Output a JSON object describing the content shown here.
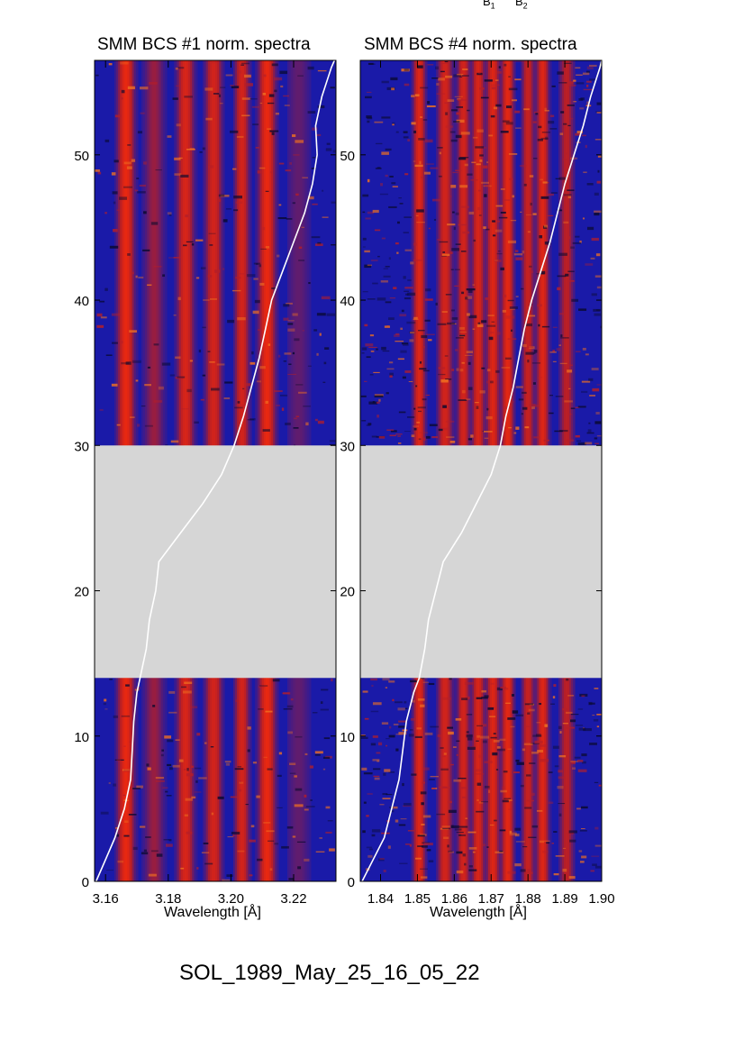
{
  "header_fragments": [
    {
      "base": "B",
      "sub": "1"
    },
    {
      "base": "B",
      "sub": "2"
    }
  ],
  "footer_text": "SOL_1989_May_25_16_05_22",
  "colors": {
    "background_low": "#1a1aa8",
    "background_noise": "#0a0a30",
    "line_high": "#e82810",
    "line_mid": "#b51e28",
    "speckle": "#f07020",
    "gap": "#d6d6d6",
    "trace": "#ffffff"
  },
  "chart_data": [
    {
      "type": "heatmap",
      "title": "SMM BCS #1 norm. spectra",
      "xlabel": "Wavelength [Å]",
      "ylabel": "",
      "xlim": [
        3.1565,
        3.2335
      ],
      "ylim": [
        0,
        56.5
      ],
      "x_ticks": [
        3.16,
        3.18,
        3.2,
        3.22
      ],
      "x_tick_labels": [
        "3.16",
        "3.18",
        "3.20",
        "3.22"
      ],
      "y_ticks": [
        0,
        10,
        20,
        30,
        40,
        50
      ],
      "y_tick_labels": [
        "0",
        "10",
        "20",
        "30",
        "40",
        "50"
      ],
      "data_gap": [
        14.0,
        30.0
      ],
      "spectral_lines": [
        {
          "wavelength": 3.1665,
          "intensity": 1.0,
          "width": 0.0016
        },
        {
          "wavelength": 3.1755,
          "intensity": 0.45,
          "width": 0.002
        },
        {
          "wavelength": 3.1855,
          "intensity": 0.85,
          "width": 0.0016
        },
        {
          "wavelength": 3.1945,
          "intensity": 0.8,
          "width": 0.0016
        },
        {
          "wavelength": 3.2035,
          "intensity": 0.8,
          "width": 0.0014
        },
        {
          "wavelength": 3.2115,
          "intensity": 1.0,
          "width": 0.0016
        },
        {
          "wavelength": 3.2215,
          "intensity": 0.25,
          "width": 0.0025
        }
      ],
      "noise_level": 0.35,
      "overlay_curve": [
        [
          3.157,
          0
        ],
        [
          3.16,
          1.5
        ],
        [
          3.163,
          3
        ],
        [
          3.166,
          5
        ],
        [
          3.168,
          7
        ],
        [
          3.1685,
          9
        ],
        [
          3.169,
          11
        ],
        [
          3.17,
          13
        ],
        [
          3.171,
          14
        ],
        [
          3.173,
          16
        ],
        [
          3.174,
          18
        ],
        [
          3.176,
          20
        ],
        [
          3.177,
          22
        ],
        [
          3.184,
          24
        ],
        [
          3.191,
          26
        ],
        [
          3.197,
          28
        ],
        [
          3.201,
          30
        ],
        [
          3.204,
          32
        ],
        [
          3.2065,
          34
        ],
        [
          3.209,
          36
        ],
        [
          3.211,
          38
        ],
        [
          3.213,
          40
        ],
        [
          3.2165,
          42
        ],
        [
          3.22,
          44
        ],
        [
          3.2235,
          46
        ],
        [
          3.226,
          48
        ],
        [
          3.2275,
          50
        ],
        [
          3.227,
          52
        ],
        [
          3.229,
          54
        ],
        [
          3.232,
          56
        ],
        [
          3.233,
          56.5
        ]
      ]
    },
    {
      "type": "heatmap",
      "title": "SMM BCS #4 norm. spectra",
      "xlabel": "Wavelength [Å]",
      "ylabel": "",
      "xlim": [
        1.8345,
        1.9
      ],
      "ylim": [
        0,
        56.5
      ],
      "x_ticks": [
        1.84,
        1.85,
        1.86,
        1.87,
        1.88,
        1.89,
        1.9
      ],
      "x_tick_labels": [
        "1.84",
        "1.85",
        "1.86",
        "1.87",
        "1.88",
        "1.89",
        "1.90"
      ],
      "y_ticks": [
        0,
        10,
        20,
        30,
        40,
        50
      ],
      "y_tick_labels": [
        "0",
        "10",
        "20",
        "30",
        "40",
        "50"
      ],
      "data_gap": [
        14.0,
        30.0
      ],
      "spectral_lines": [
        {
          "wavelength": 1.8505,
          "intensity": 0.9,
          "width": 0.001
        },
        {
          "wavelength": 1.8575,
          "intensity": 0.8,
          "width": 0.0012
        },
        {
          "wavelength": 1.8625,
          "intensity": 0.8,
          "width": 0.001
        },
        {
          "wavelength": 1.8665,
          "intensity": 0.85,
          "width": 0.001
        },
        {
          "wavelength": 1.8705,
          "intensity": 0.9,
          "width": 0.001
        },
        {
          "wavelength": 1.8745,
          "intensity": 0.95,
          "width": 0.001
        },
        {
          "wavelength": 1.88,
          "intensity": 0.7,
          "width": 0.001
        },
        {
          "wavelength": 1.884,
          "intensity": 0.9,
          "width": 0.001
        },
        {
          "wavelength": 1.8905,
          "intensity": 0.6,
          "width": 0.0012
        }
      ],
      "noise_level": 0.75,
      "overlay_curve": [
        [
          1.835,
          0
        ],
        [
          1.838,
          1.5
        ],
        [
          1.841,
          3
        ],
        [
          1.843,
          5
        ],
        [
          1.845,
          7
        ],
        [
          1.846,
          9
        ],
        [
          1.847,
          11
        ],
        [
          1.849,
          13
        ],
        [
          1.8505,
          14
        ],
        [
          1.852,
          16
        ],
        [
          1.853,
          18
        ],
        [
          1.855,
          20
        ],
        [
          1.857,
          22
        ],
        [
          1.862,
          24
        ],
        [
          1.866,
          26
        ],
        [
          1.87,
          28
        ],
        [
          1.8725,
          30
        ],
        [
          1.874,
          32
        ],
        [
          1.876,
          34
        ],
        [
          1.8775,
          36
        ],
        [
          1.879,
          38
        ],
        [
          1.881,
          40
        ],
        [
          1.8835,
          42
        ],
        [
          1.886,
          44
        ],
        [
          1.888,
          46
        ],
        [
          1.89,
          48
        ],
        [
          1.8925,
          50
        ],
        [
          1.895,
          52
        ],
        [
          1.897,
          54
        ],
        [
          1.8995,
          56
        ],
        [
          1.9,
          56.5
        ]
      ]
    }
  ]
}
